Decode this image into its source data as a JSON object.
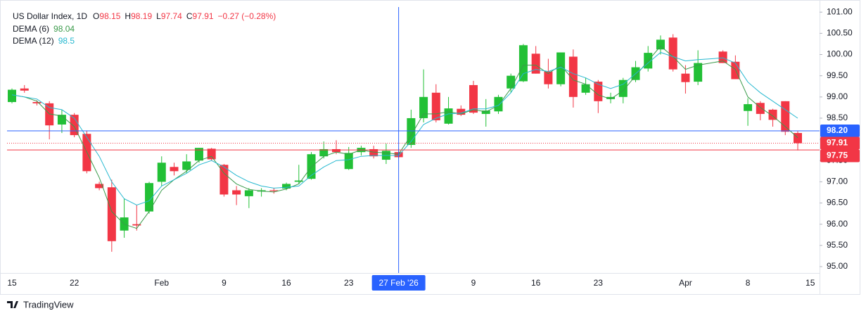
{
  "chart_data": {
    "type": "candlestick",
    "title": "US Dollar Index, 1D",
    "ohlc_labels": [
      "O",
      "H",
      "L",
      "C"
    ],
    "change_label": "−0.27 (−0.28%)",
    "up_color": "#22c036",
    "down_color": "#f23645",
    "categories": [
      "15",
      null,
      null,
      null,
      null,
      "22",
      null,
      null,
      null,
      null,
      null,
      null,
      "Feb",
      null,
      null,
      null,
      null,
      "9",
      null,
      null,
      null,
      null,
      "16",
      null,
      null,
      null,
      null,
      "23",
      null,
      null,
      null,
      "27 Feb '26",
      null,
      null,
      null,
      null,
      null,
      "9",
      null,
      null,
      null,
      null,
      "16",
      null,
      null,
      null,
      null,
      "23",
      null,
      null,
      null,
      null,
      null,
      null,
      "Apr",
      null,
      null,
      null,
      null,
      "8",
      null,
      null,
      null,
      null,
      "15"
    ],
    "open": [
      98.88,
      99.2,
      98.88,
      98.85,
      98.35,
      98.58,
      98.13,
      96.95,
      96.87,
      95.85,
      96.0,
      96.3,
      97.0,
      97.35,
      97.28,
      97.5,
      97.78,
      97.4,
      96.8,
      96.66,
      96.77,
      96.8,
      96.84,
      97.0,
      97.07,
      97.6,
      97.77,
      97.3,
      97.7,
      97.77,
      97.52,
      97.7,
      97.87,
      98.5,
      99.1,
      98.37,
      98.72,
      99.28,
      98.6,
      98.66,
      99.2,
      99.37,
      100.02,
      99.6,
      99.3,
      99.95,
      99.1,
      99.36,
      98.95,
      99.0,
      99.4,
      99.67,
      100.12,
      100.4,
      99.55,
      99.36,
      null,
      100.07,
      99.83,
      98.67,
      98.86,
      98.7,
      98.9,
      98.15,
      null
    ],
    "high": [
      99.2,
      99.28,
      98.92,
      98.9,
      98.7,
      98.62,
      98.2,
      97.0,
      97.05,
      96.6,
      96.45,
      97.0,
      97.6,
      97.45,
      97.65,
      97.8,
      97.8,
      97.42,
      96.9,
      96.85,
      96.85,
      96.85,
      96.98,
      97.4,
      97.7,
      97.95,
      97.98,
      97.82,
      97.85,
      97.85,
      97.9,
      97.78,
      98.7,
      99.65,
      99.3,
      99.0,
      98.8,
      99.38,
      98.95,
      99.05,
      99.55,
      100.25,
      100.2,
      99.9,
      100.05,
      100.12,
      99.45,
      99.4,
      99.1,
      99.45,
      99.85,
      100.2,
      100.45,
      100.48,
      99.75,
      100.1,
      null,
      100.1,
      99.98,
      98.97,
      98.9,
      98.72,
      98.9,
      98.19,
      null
    ],
    "low": [
      98.85,
      99.1,
      98.8,
      98.0,
      98.15,
      98.05,
      97.2,
      96.8,
      95.35,
      95.68,
      95.85,
      96.25,
      96.9,
      97.15,
      97.2,
      97.45,
      97.5,
      96.65,
      96.45,
      96.38,
      96.65,
      96.72,
      96.8,
      96.95,
      97.05,
      97.55,
      97.65,
      97.28,
      97.62,
      97.55,
      97.42,
      97.55,
      97.8,
      98.4,
      98.4,
      98.35,
      98.55,
      98.6,
      98.3,
      98.6,
      99.1,
      99.35,
      99.55,
      99.2,
      99.25,
      98.75,
      99.05,
      98.62,
      98.85,
      98.85,
      99.35,
      99.6,
      100.0,
      99.6,
      99.08,
      99.28,
      null,
      99.8,
      99.42,
      98.32,
      98.45,
      98.3,
      98.1,
      97.74,
      null
    ],
    "close": [
      99.17,
      99.15,
      98.85,
      98.33,
      98.58,
      98.1,
      97.25,
      96.85,
      95.6,
      96.16,
      95.97,
      96.97,
      97.45,
      97.25,
      97.48,
      97.8,
      97.53,
      96.7,
      96.7,
      96.8,
      96.8,
      96.78,
      96.95,
      97.03,
      97.65,
      97.77,
      97.7,
      97.68,
      97.8,
      97.6,
      97.73,
      97.58,
      98.5,
      99.0,
      98.45,
      98.73,
      98.58,
      98.63,
      98.68,
      99.0,
      99.5,
      100.22,
      99.55,
      99.3,
      100.05,
      99.0,
      99.3,
      98.9,
      99.0,
      99.4,
      99.7,
      100.04,
      100.35,
      99.65,
      99.35,
      99.8,
      null,
      99.8,
      99.42,
      98.83,
      98.6,
      98.46,
      98.18,
      97.91,
      null
    ],
    "series": [
      {
        "name": "DEMA (6)",
        "color": "#3a9a4a",
        "values": [
          99.05,
          99.0,
          98.9,
          98.6,
          98.55,
          98.3,
          97.7,
          97.1,
          96.3,
          96.0,
          95.9,
          96.3,
          96.8,
          97.05,
          97.25,
          97.5,
          97.6,
          97.2,
          96.95,
          96.82,
          96.78,
          96.76,
          96.83,
          96.95,
          97.35,
          97.6,
          97.7,
          97.65,
          97.75,
          97.7,
          97.68,
          97.65,
          98.1,
          98.6,
          98.6,
          98.65,
          98.6,
          98.7,
          98.65,
          98.8,
          99.2,
          99.75,
          99.75,
          99.55,
          99.75,
          99.4,
          99.3,
          99.05,
          98.95,
          99.15,
          99.5,
          99.85,
          100.2,
          99.95,
          99.65,
          99.75,
          99.8,
          99.85,
          99.65,
          99.0,
          98.75,
          98.55,
          98.3,
          98.04,
          null
        ]
      },
      {
        "name": "DEMA (12)",
        "color": "#26b8d0",
        "values": [
          99.05,
          99.0,
          98.95,
          98.75,
          98.7,
          98.5,
          98.05,
          97.6,
          97.0,
          96.6,
          96.45,
          96.55,
          96.9,
          97.05,
          97.2,
          97.4,
          97.5,
          97.35,
          97.15,
          97.0,
          96.9,
          96.85,
          96.87,
          96.9,
          97.15,
          97.35,
          97.5,
          97.52,
          97.6,
          97.62,
          97.62,
          97.62,
          97.95,
          98.35,
          98.5,
          98.6,
          98.62,
          98.72,
          98.72,
          98.8,
          99.1,
          99.55,
          99.65,
          99.6,
          99.7,
          99.55,
          99.45,
          99.3,
          99.2,
          99.3,
          99.55,
          99.8,
          100.05,
          99.95,
          99.85,
          99.88,
          99.9,
          99.92,
          99.8,
          99.35,
          99.1,
          98.9,
          98.7,
          98.5,
          null
        ]
      }
    ],
    "ylim": [
      94.85,
      101.12
    ],
    "yticks": [
      {
        "value": 95,
        "label": "95.00"
      },
      {
        "value": 95.5,
        "label": "95.50"
      },
      {
        "value": 96,
        "label": "96.00"
      },
      {
        "value": 96.5,
        "label": "96.50"
      },
      {
        "value": 97,
        "label": "97.00"
      },
      {
        "value": 97.5,
        "label": "97.50"
      },
      {
        "value": 98,
        "label": "98.00"
      },
      {
        "value": 98.5,
        "label": "98.50"
      },
      {
        "value": 99,
        "label": "99.00"
      },
      {
        "value": 99.5,
        "label": "99.50"
      },
      {
        "value": 100,
        "label": "100.00"
      },
      {
        "value": 100.5,
        "label": "100.50"
      },
      {
        "value": 101,
        "label": "101.00"
      }
    ],
    "grid": false,
    "price_line": 97.75,
    "crosshair": {
      "category": 31,
      "price": {
        "value": 98.2,
        "label": "98.20"
      },
      "color": "#2962ff"
    },
    "branding": "TradingView"
  }
}
